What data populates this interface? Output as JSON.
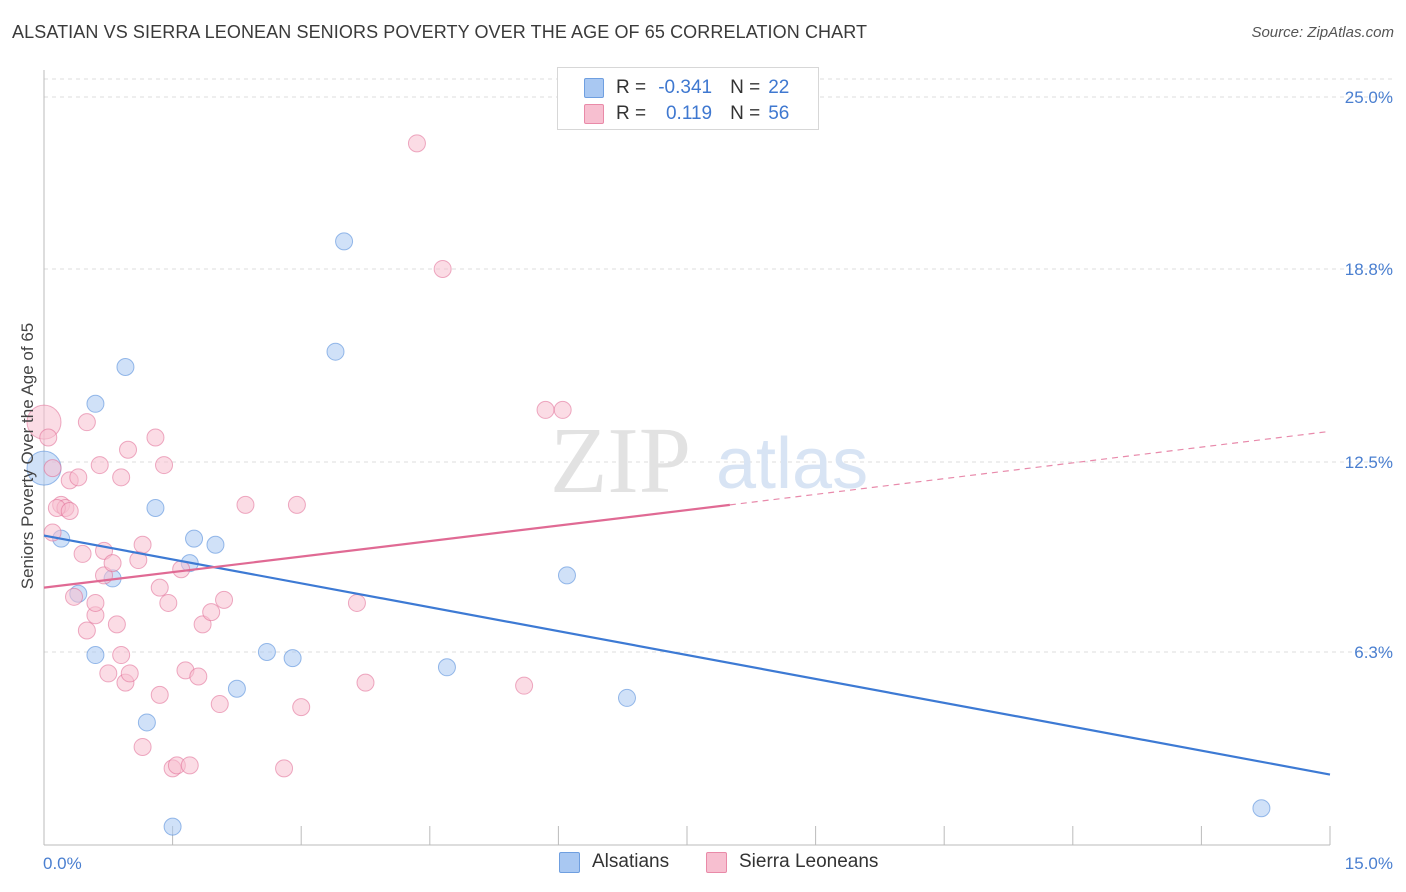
{
  "header": {
    "title": "ALSATIAN VS SIERRA LEONEAN SENIORS POVERTY OVER THE AGE OF 65 CORRELATION CHART",
    "source": "Source: ZipAtlas.com"
  },
  "watermark": {
    "zip": "ZIP",
    "atlas": "atlas"
  },
  "legend": {
    "rows": [
      {
        "r_label": "R =",
        "r_value": "-0.341",
        "n_label": "N =",
        "n_value": "22",
        "color": "#a9c8f2",
        "border": "#6f9fe0"
      },
      {
        "r_label": "R =",
        "r_value": "0.119",
        "n_label": "N =",
        "n_value": "56",
        "color": "#f7bfd0",
        "border": "#e98aa8"
      }
    ]
  },
  "bottom_legend": [
    {
      "label": "Alsatians",
      "color": "#a9c8f2",
      "border": "#6f9fe0"
    },
    {
      "label": "Sierra Leoneans",
      "color": "#f7bfd0",
      "border": "#e98aa8"
    }
  ],
  "chart_data": {
    "type": "scatter",
    "title": "ALSATIAN VS SIERRA LEONEAN SENIORS POVERTY OVER THE AGE OF 65 CORRELATION CHART",
    "xlabel": "",
    "ylabel": "Seniors Poverty Over the Age of 65",
    "xlim": [
      0,
      15
    ],
    "ylim": [
      0,
      25.0
    ],
    "x_tick_labels": [
      "0.0%",
      "15.0%"
    ],
    "y_ticks": [
      6.3,
      12.5,
      18.8,
      25.0
    ],
    "y_tick_labels": [
      "6.3%",
      "12.5%",
      "18.8%",
      "25.0%"
    ],
    "grid": true,
    "series": [
      {
        "name": "Alsatians",
        "color": "#4a86d8",
        "fill": "#a9c8f2",
        "points": [
          [
            0.0,
            12.3
          ],
          [
            0.2,
            10.0
          ],
          [
            0.4,
            8.2
          ],
          [
            0.6,
            14.4
          ],
          [
            0.8,
            8.7
          ],
          [
            0.6,
            6.2
          ],
          [
            0.95,
            15.6
          ],
          [
            1.3,
            11.0
          ],
          [
            1.2,
            4.0
          ],
          [
            1.7,
            9.2
          ],
          [
            1.75,
            10.0
          ],
          [
            2.0,
            9.8
          ],
          [
            2.25,
            5.1
          ],
          [
            2.6,
            6.3
          ],
          [
            2.9,
            6.1
          ],
          [
            3.4,
            16.1
          ],
          [
            3.5,
            19.7
          ],
          [
            4.7,
            5.8
          ],
          [
            6.1,
            8.8
          ],
          [
            6.8,
            4.8
          ],
          [
            14.2,
            1.2
          ],
          [
            1.5,
            0.6
          ]
        ],
        "trend": {
          "x": [
            0.0,
            15.0
          ],
          "y": [
            10.1,
            2.3
          ]
        }
      },
      {
        "name": "Sierra Leoneans",
        "color": "#e06a94",
        "fill": "#f7bfd0",
        "points": [
          [
            0.0,
            13.8
          ],
          [
            0.05,
            13.3
          ],
          [
            0.1,
            12.3
          ],
          [
            0.1,
            10.2
          ],
          [
            0.2,
            11.1
          ],
          [
            0.25,
            11.0
          ],
          [
            0.3,
            11.9
          ],
          [
            0.35,
            8.1
          ],
          [
            0.4,
            12.0
          ],
          [
            0.45,
            9.5
          ],
          [
            0.5,
            13.8
          ],
          [
            0.5,
            7.0
          ],
          [
            0.6,
            7.5
          ],
          [
            0.6,
            7.9
          ],
          [
            0.65,
            12.4
          ],
          [
            0.7,
            9.6
          ],
          [
            0.7,
            8.8
          ],
          [
            0.75,
            5.6
          ],
          [
            0.8,
            9.2
          ],
          [
            0.85,
            7.2
          ],
          [
            0.9,
            12.0
          ],
          [
            0.9,
            6.2
          ],
          [
            0.95,
            5.3
          ],
          [
            0.98,
            12.9
          ],
          [
            1.0,
            5.6
          ],
          [
            1.1,
            9.3
          ],
          [
            1.15,
            9.8
          ],
          [
            1.15,
            3.2
          ],
          [
            1.3,
            13.3
          ],
          [
            1.35,
            8.4
          ],
          [
            1.35,
            4.9
          ],
          [
            1.4,
            12.4
          ],
          [
            1.45,
            7.9
          ],
          [
            1.5,
            2.5
          ],
          [
            1.55,
            2.6
          ],
          [
            1.6,
            9.0
          ],
          [
            1.65,
            5.7
          ],
          [
            1.7,
            2.6
          ],
          [
            1.8,
            5.5
          ],
          [
            1.85,
            7.2
          ],
          [
            1.95,
            7.6
          ],
          [
            2.05,
            4.6
          ],
          [
            2.1,
            8.0
          ],
          [
            2.35,
            11.1
          ],
          [
            2.8,
            2.5
          ],
          [
            2.95,
            11.1
          ],
          [
            3.0,
            4.5
          ],
          [
            3.65,
            7.9
          ],
          [
            3.75,
            5.3
          ],
          [
            4.35,
            22.9
          ],
          [
            4.65,
            18.8
          ],
          [
            5.6,
            5.2
          ],
          [
            5.85,
            14.2
          ],
          [
            6.05,
            14.2
          ],
          [
            0.15,
            11.0
          ],
          [
            0.3,
            10.9
          ]
        ],
        "trend": {
          "x": [
            0.0,
            8.0
          ],
          "y": [
            8.4,
            11.1
          ]
        },
        "trend_dashed": {
          "x": [
            8.0,
            15.0
          ],
          "y": [
            11.1,
            13.5
          ]
        }
      }
    ]
  }
}
